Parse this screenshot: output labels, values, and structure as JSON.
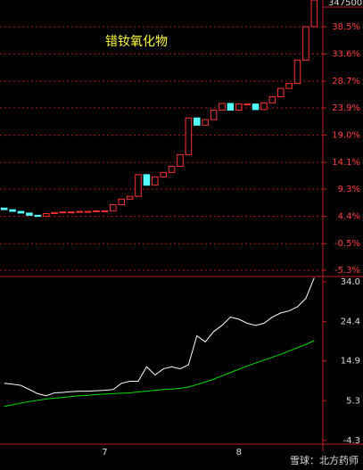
{
  "header_label": "347500",
  "watermark": "雪球：北方药师",
  "chart_data": [
    {
      "type": "candlestick",
      "title": "错钕氧化物",
      "up_color": "#ff3232",
      "down_color": "#54ffff",
      "grid": true,
      "categories": [
        null,
        null,
        null,
        null,
        null,
        null,
        null,
        null,
        null,
        null,
        null,
        null,
        "7",
        null,
        null,
        null,
        null,
        null,
        null,
        null,
        null,
        null,
        null,
        null,
        null,
        null,
        null,
        null,
        "8",
        null,
        null,
        null,
        null,
        null,
        null,
        null,
        null,
        null
      ],
      "open": [
        5.9,
        5.6,
        5.3,
        5.0,
        4.6,
        4.4,
        4.9,
        5.1,
        5.2,
        5.2,
        5.3,
        5.3,
        5.4,
        5.4,
        6.5,
        7.5,
        8.0,
        11.9,
        10.0,
        11.5,
        12.3,
        13.4,
        15.5,
        22.1,
        20.8,
        21.8,
        23.5,
        24.7,
        23.5,
        24.6,
        24.6,
        23.6,
        24.8,
        25.9,
        27.4,
        28.3,
        32.5,
        38.5
      ],
      "close": [
        5.6,
        5.3,
        5.0,
        4.6,
        4.4,
        4.9,
        5.1,
        5.2,
        5.2,
        5.3,
        5.3,
        5.4,
        5.4,
        6.5,
        7.5,
        8.0,
        11.9,
        10.0,
        11.5,
        12.3,
        13.4,
        15.5,
        22.1,
        20.8,
        21.8,
        23.5,
        24.7,
        23.5,
        24.6,
        24.6,
        23.6,
        24.8,
        25.9,
        27.4,
        28.3,
        32.5,
        38.5,
        43.3
      ],
      "ylim": [
        -6.4,
        43.3
      ],
      "yticks": [
        {
          "value": 38.5,
          "label": "38.5%"
        },
        {
          "value": 33.6,
          "label": "33.6%"
        },
        {
          "value": 28.7,
          "label": "28.7%"
        },
        {
          "value": 23.9,
          "label": "23.9%"
        },
        {
          "value": 19.0,
          "label": "19.0%"
        },
        {
          "value": 14.1,
          "label": "14.1%"
        },
        {
          "value": 9.3,
          "label": "9.3%"
        },
        {
          "value": 4.4,
          "label": "4.4%"
        },
        {
          "value": -0.5,
          "label": "-0.5%"
        },
        {
          "value": -5.3,
          "label": "-5.3%"
        }
      ]
    },
    {
      "type": "line",
      "grid": false,
      "series": [
        {
          "color": "#ffffff",
          "values": [
            9.5,
            9.3,
            9.0,
            8.0,
            7.0,
            6.5,
            7.2,
            7.3,
            7.5,
            7.6,
            7.6,
            7.7,
            7.8,
            8.0,
            9.5,
            10.0,
            10.0,
            13.5,
            11.5,
            13.0,
            13.5,
            13.0,
            14.0,
            21.0,
            19.5,
            22.0,
            23.5,
            25.5,
            25.0,
            24.0,
            23.5,
            24.0,
            25.5,
            26.5,
            27.0,
            28.0,
            30.0,
            35.0
          ]
        },
        {
          "color": "#00e000",
          "values": [
            3.9,
            4.3,
            4.7,
            5.1,
            5.4,
            5.7,
            5.9,
            6.1,
            6.3,
            6.5,
            6.6,
            6.8,
            6.9,
            7.0,
            7.1,
            7.2,
            7.4,
            7.6,
            7.8,
            8.0,
            8.1,
            8.3,
            8.6,
            9.2,
            9.8,
            10.5,
            11.3,
            12.1,
            12.9,
            13.7,
            14.4,
            15.1,
            15.8,
            16.5,
            17.3,
            18.1,
            18.9,
            19.8
          ]
        }
      ],
      "ylim": [
        -5.2,
        35.1
      ],
      "yticks": [
        {
          "value": 34.0,
          "label": "34.0"
        },
        24.4,
        14.9,
        5.3,
        -4.3
      ]
    }
  ]
}
